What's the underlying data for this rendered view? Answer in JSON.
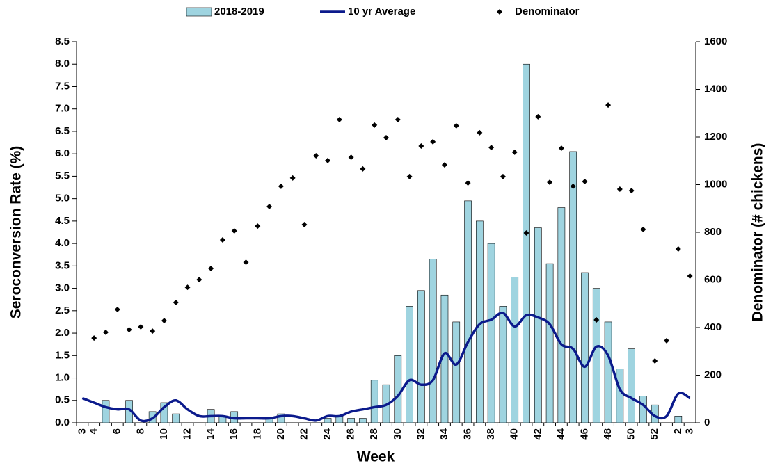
{
  "chart_data": {
    "type": "combo",
    "x_label": "Week",
    "y_label": "Seroconversion Rate (%)",
    "y2_label": "Denominator (# chickens)",
    "categories": [
      "3",
      "4",
      null,
      "6",
      null,
      "8",
      null,
      "10",
      null,
      "12",
      null,
      "14",
      null,
      "16",
      null,
      "18",
      null,
      "20",
      null,
      "22",
      null,
      "24",
      null,
      "26",
      null,
      "28",
      null,
      "30",
      null,
      "32",
      null,
      "34",
      null,
      "36",
      null,
      "38",
      null,
      "40",
      null,
      "42",
      null,
      "44",
      null,
      "46",
      null,
      "48",
      null,
      "50",
      null,
      "52",
      null,
      "2",
      "3"
    ],
    "series": [
      {
        "name": "2018-2019",
        "kind": "bar",
        "color": "#9fd4e0",
        "values": [
          0,
          0,
          0.5,
          0,
          0.5,
          0,
          0.25,
          0.45,
          0.2,
          0,
          0,
          0.3,
          0.15,
          0.25,
          0,
          0,
          0.1,
          0.2,
          0,
          0,
          0,
          0.1,
          0.15,
          0.1,
          0.1,
          0.95,
          0.85,
          1.5,
          2.6,
          2.95,
          3.65,
          2.85,
          2.25,
          4.95,
          4.5,
          4.0,
          2.6,
          3.25,
          8.0,
          4.35,
          3.55,
          4.8,
          6.05,
          3.35,
          3.0,
          2.25,
          1.2,
          1.65,
          0.6,
          0.4,
          0,
          0.15,
          0
        ]
      },
      {
        "name": "10 yr Average",
        "kind": "line",
        "color": "#0b1a8c",
        "values": [
          0.55,
          0.45,
          0.35,
          0.3,
          0.3,
          0.05,
          0.1,
          0.35,
          0.5,
          0.3,
          0.15,
          0.15,
          0.15,
          0.1,
          0.1,
          0.1,
          0.1,
          0.15,
          0.15,
          0.1,
          0.05,
          0.15,
          0.15,
          0.25,
          0.3,
          0.35,
          0.4,
          0.6,
          0.95,
          0.85,
          0.95,
          1.55,
          1.3,
          1.8,
          2.2,
          2.3,
          2.45,
          2.15,
          2.4,
          2.35,
          2.2,
          1.75,
          1.65,
          1.25,
          1.7,
          1.5,
          0.75,
          0.55,
          0.4,
          0.15,
          0.15,
          0.65,
          0.55
        ]
      },
      {
        "name": "Denominator",
        "kind": "scatter",
        "axis": "y2",
        "color": "#000000",
        "values": [
          null,
          356,
          380,
          476,
          391,
          403,
          385,
          429,
          505,
          569,
          601,
          648,
          768,
          806,
          674,
          826,
          908,
          993,
          1028,
          832,
          1121,
          1101,
          1273,
          1115,
          1066,
          1250,
          1197,
          1273,
          1034,
          1162,
          1180,
          1083,
          1247,
          1007,
          1218,
          1156,
          1034,
          1136,
          797,
          1285,
          1010,
          1153,
          993,
          1013,
          432,
          1334,
          981,
          975,
          812,
          260,
          345,
          730,
          616
        ]
      }
    ],
    "ylim": [
      0,
      8.5
    ],
    "yticks": [
      {
        "value": 0,
        "label": "0.0"
      },
      {
        "value": 0.5,
        "label": "0.5"
      },
      {
        "value": 1,
        "label": "1.0"
      },
      {
        "value": 1.5,
        "label": "1.5"
      },
      {
        "value": 2,
        "label": "2.0"
      },
      {
        "value": 2.5,
        "label": "2.5"
      },
      {
        "value": 3,
        "label": "3.0"
      },
      {
        "value": 3.5,
        "label": "3.5"
      },
      {
        "value": 4,
        "label": "4.0"
      },
      {
        "value": 4.5,
        "label": "4.5"
      },
      {
        "value": 5,
        "label": "5.0"
      },
      {
        "value": 5.5,
        "label": "5.5"
      },
      {
        "value": 6,
        "label": "6.0"
      },
      {
        "value": 6.5,
        "label": "6.5"
      },
      {
        "value": 7,
        "label": "7.0"
      },
      {
        "value": 7.5,
        "label": "7.5"
      },
      {
        "value": 8,
        "label": "8.0"
      },
      {
        "value": 8.5,
        "label": "8.5"
      }
    ],
    "y2lim": [
      0,
      1600
    ],
    "y2ticks": [
      0,
      200,
      400,
      600,
      800,
      1000,
      1200,
      1400,
      1600
    ]
  }
}
